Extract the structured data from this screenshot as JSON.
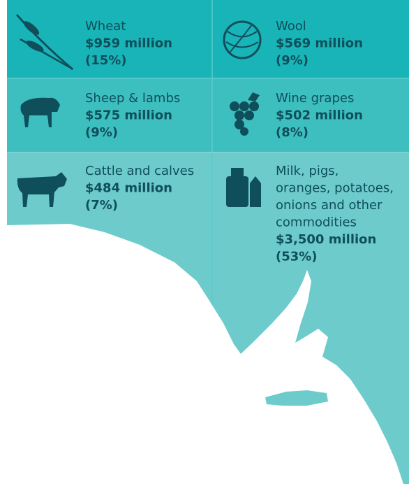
{
  "items": [
    {
      "label": [
        "Wheat"
      ],
      "value": "$959 million",
      "share": "(15%)"
    },
    {
      "label": [
        "Wool"
      ],
      "value": "$569 million",
      "share": "(9%)"
    },
    {
      "label": [
        "Sheep & lambs"
      ],
      "value": "$575 million",
      "share": "(9%)"
    },
    {
      "label": [
        "Wine grapes"
      ],
      "value": "$502 million",
      "share": "(8%)"
    },
    {
      "label": [
        "Cattle and calves"
      ],
      "value": "$484 million",
      "share": "(7%)"
    },
    {
      "label": [
        "Milk, pigs,",
        "oranges, potatoes,",
        "onions and other",
        "commodities"
      ],
      "value": "$3,500 million",
      "share": "(53%)"
    }
  ]
}
